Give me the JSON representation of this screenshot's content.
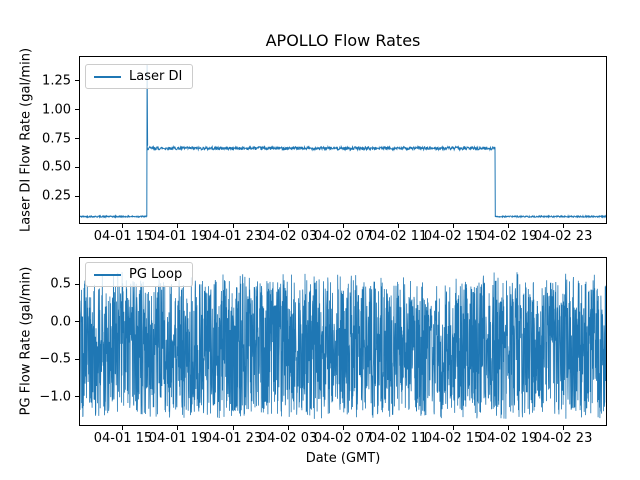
{
  "figure": {
    "background": "#ffffff",
    "line_color": "#1f77b4",
    "title": "APOLLO Flow Rates",
    "xlabel": "Date (GMT)"
  },
  "chart_data": [
    {
      "type": "line",
      "title": "APOLLO Flow Rates",
      "ylabel": "Laser DI Flow Rate (gal/min)",
      "legend": [
        "Laser DI"
      ],
      "legend_position": "upper left",
      "line_color": "#1f77b4",
      "grid": false,
      "ylim": [
        0.016,
        1.458
      ],
      "yticks": [
        0.25,
        0.5,
        0.75,
        1.0,
        1.25
      ],
      "ytick_labels": [
        "0.25",
        "0.50",
        "0.75",
        "1.00",
        "1.25"
      ],
      "xtick_labels": [
        "04-01 15",
        "04-01 19",
        "04-01 23",
        "04-02 03",
        "04-02 07",
        "04-02 11",
        "04-02 15",
        "04-02 19",
        "04-02 23"
      ],
      "xtick_first_frac": 0.0817,
      "xtick_step_frac": 0.1046,
      "series": [
        {
          "name": "Laser DI",
          "shape": "step-plateau",
          "baseline_value": 0.072,
          "plateau_value": 0.665,
          "spike_peak": 1.39,
          "step_up_time": "04-01 16:45",
          "step_down_time": "04-02 18:00",
          "step_up_frac": 0.127,
          "step_down_frac": 0.789,
          "baseline_noise": 0.006,
          "plateau_noise": 0.014
        }
      ]
    },
    {
      "type": "line",
      "ylabel": "PG Flow Rate (gal/min)",
      "xlabel": "Date (GMT)",
      "legend": [
        "PG Loop"
      ],
      "legend_position": "upper left",
      "line_color": "#1f77b4",
      "grid": false,
      "ylim": [
        -1.38,
        0.847
      ],
      "yticks": [
        0.5,
        0.0,
        -0.5,
        -1.0
      ],
      "ytick_labels": [
        "0.5",
        "0.0",
        "−0.5",
        "−1.0"
      ],
      "xtick_labels": [
        "04-01 15",
        "04-01 19",
        "04-01 23",
        "04-02 03",
        "04-02 07",
        "04-02 11",
        "04-02 15",
        "04-02 19",
        "04-02 23"
      ],
      "xtick_first_frac": 0.0817,
      "xtick_step_frac": 0.1046,
      "series": [
        {
          "name": "PG Loop",
          "shape": "uniform-noise",
          "noise_min": -1.24,
          "noise_max": 0.55,
          "rare_min": -1.3,
          "rare_max": 0.66
        }
      ]
    }
  ]
}
